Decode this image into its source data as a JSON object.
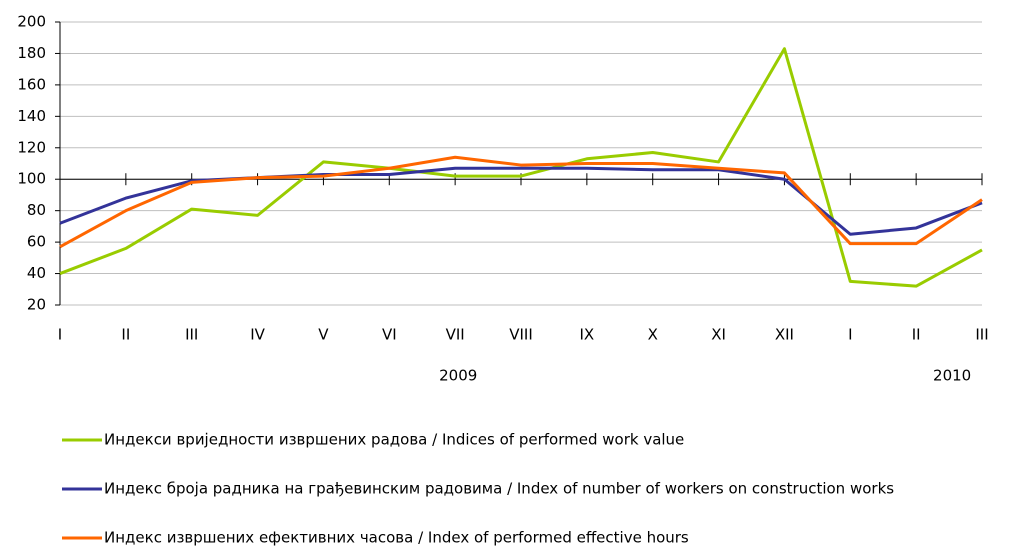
{
  "chart_data": {
    "type": "line",
    "categories": [
      "I",
      "II",
      "III",
      "IV",
      "V",
      "VI",
      "VII",
      "VIII",
      "IX",
      "X",
      "XI",
      "XII",
      "I",
      "II",
      "III"
    ],
    "x_groups": [
      {
        "label": "2009",
        "categories": 12
      },
      {
        "label": "2010",
        "categories": 3
      }
    ],
    "series": [
      {
        "name": "Индекси вриједности извршених радова / Indices of performed work value",
        "color": "#99cc00",
        "values": [
          40,
          56,
          81,
          77,
          111,
          107,
          102,
          102,
          113,
          117,
          111,
          183,
          35,
          32,
          55
        ]
      },
      {
        "name": "Индекс броја радника на грађевинским радовима / Index of number of workers on construction works",
        "color": "#333399",
        "values": [
          72,
          88,
          99,
          101,
          103,
          103,
          107,
          107,
          107,
          106,
          106,
          100,
          65,
          69,
          85
        ]
      },
      {
        "name": "Индекс извршених ефективних часова / Index of performed effective hours",
        "color": "#ff6600",
        "values": [
          57,
          80,
          98,
          101,
          102,
          107,
          114,
          109,
          110,
          110,
          107,
          104,
          59,
          59,
          87
        ]
      }
    ],
    "ylim": [
      20,
      200
    ],
    "yticks": [
      20,
      40,
      60,
      80,
      100,
      120,
      140,
      160,
      180,
      200
    ],
    "category_axis_at": 100,
    "grid": true,
    "legend": "bottom"
  }
}
